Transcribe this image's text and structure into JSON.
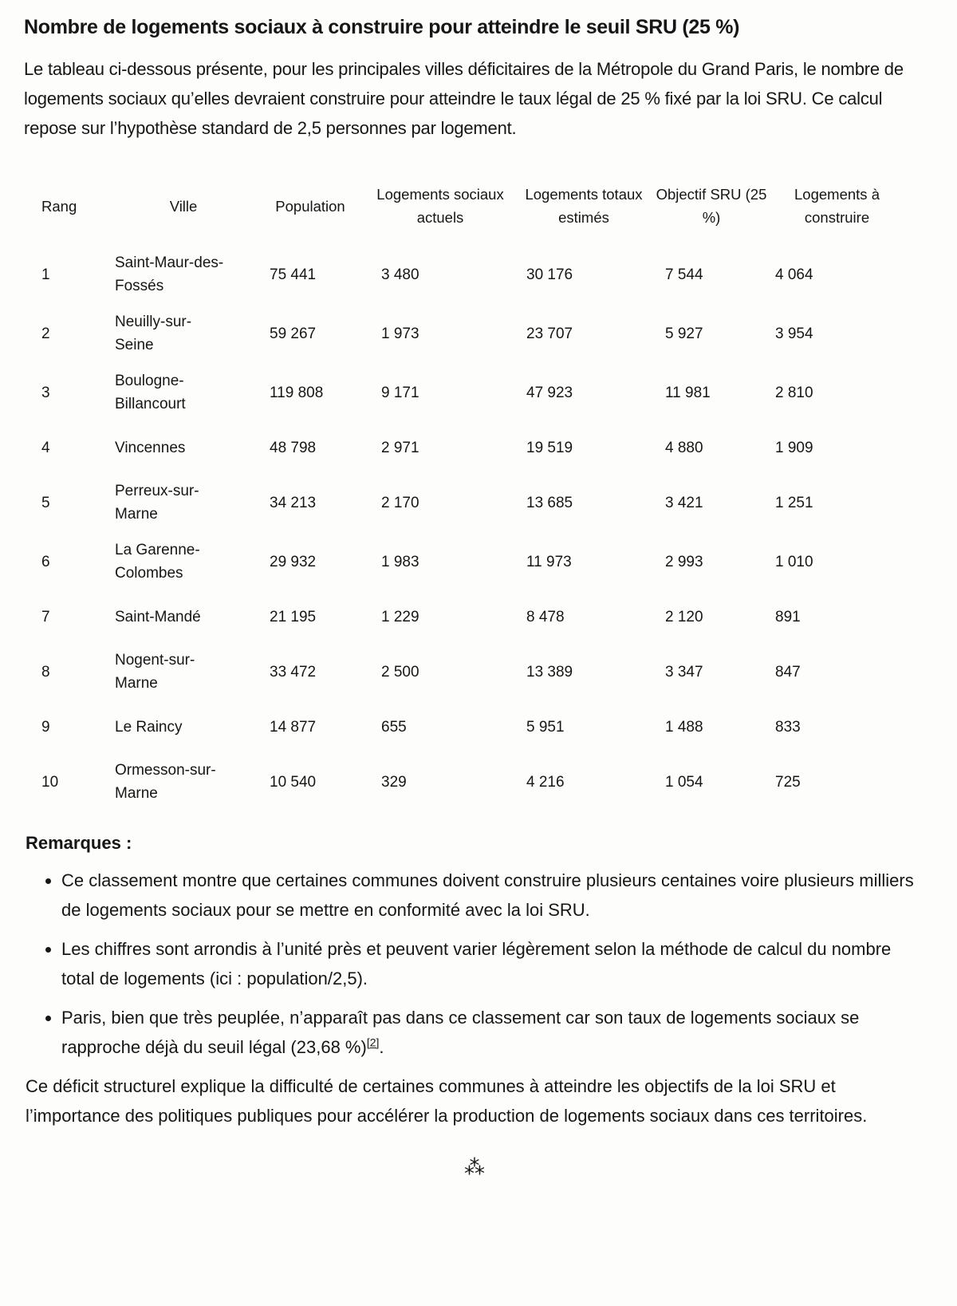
{
  "title": "Nombre de logements sociaux à construire pour atteindre le seuil SRU (25 %)",
  "intro": "Le tableau ci-dessous présente, pour les principales villes déficitaires de la Métropole du Grand Paris, le nombre de logements sociaux qu’elles devraient construire pour atteindre le taux légal de 25 % fixé par la loi SRU. Ce calcul repose sur l’hypothèse standard de 2,5 personnes par logement.",
  "table": {
    "headers": [
      "Rang",
      "Ville",
      "Population",
      "Logements sociaux actuels",
      "Logements totaux estimés",
      "Objectif SRU (25 %)",
      "Logements à construire"
    ],
    "rows": [
      [
        "1",
        "Saint-Maur-des-Fossés",
        "75 441",
        "3 480",
        "30 176",
        "7 544",
        "4 064"
      ],
      [
        "2",
        "Neuilly-sur-Seine",
        "59 267",
        "1 973",
        "23 707",
        "5 927",
        "3 954"
      ],
      [
        "3",
        "Boulogne-Billancourt",
        "119 808",
        "9 171",
        "47 923",
        "11 981",
        "2 810"
      ],
      [
        "4",
        "Vincennes",
        "48 798",
        "2 971",
        "19 519",
        "4 880",
        "1 909"
      ],
      [
        "5",
        "Perreux-sur-Marne",
        "34 213",
        "2 170",
        "13 685",
        "3 421",
        "1 251"
      ],
      [
        "6",
        "La Garenne-Colombes",
        "29 932",
        "1 983",
        "11 973",
        "2 993",
        "1 010"
      ],
      [
        "7",
        "Saint-Mandé",
        "21 195",
        "1 229",
        "8 478",
        "2 120",
        "891"
      ],
      [
        "8",
        "Nogent-sur-Marne",
        "33 472",
        "2 500",
        "13 389",
        "3 347",
        "847"
      ],
      [
        "9",
        "Le Raincy",
        "14 877",
        "655",
        "5 951",
        "1 488",
        "833"
      ],
      [
        "10",
        "Ormesson-sur-Marne",
        "10 540",
        "329",
        "4 216",
        "1 054",
        "725"
      ]
    ]
  },
  "remarks_label": "Remarques :",
  "remarks": [
    "Ce classement montre que certaines communes doivent construire plusieurs centaines voire plusieurs milliers de logements sociaux pour se mettre en conformité avec la loi SRU.",
    "Les chiffres sont arrondis à l’unité près et peuvent varier légèrement selon la méthode de calcul du nombre total de logements (ici : population/2,5).",
    "Paris, bien que très peuplée, n’apparaît pas dans ce classement car son taux de logements sociaux se rapproche déjà du seuil légal (23,68 %)"
  ],
  "footnote_ref": "[2]",
  "conclusion": "Ce déficit structurel explique la difficulté de certaines communes à atteindre les objectifs de la loi SRU et l’importance des politiques publiques pour accélérer la production de logements sociaux dans ces territoires.",
  "separator": "⁂"
}
